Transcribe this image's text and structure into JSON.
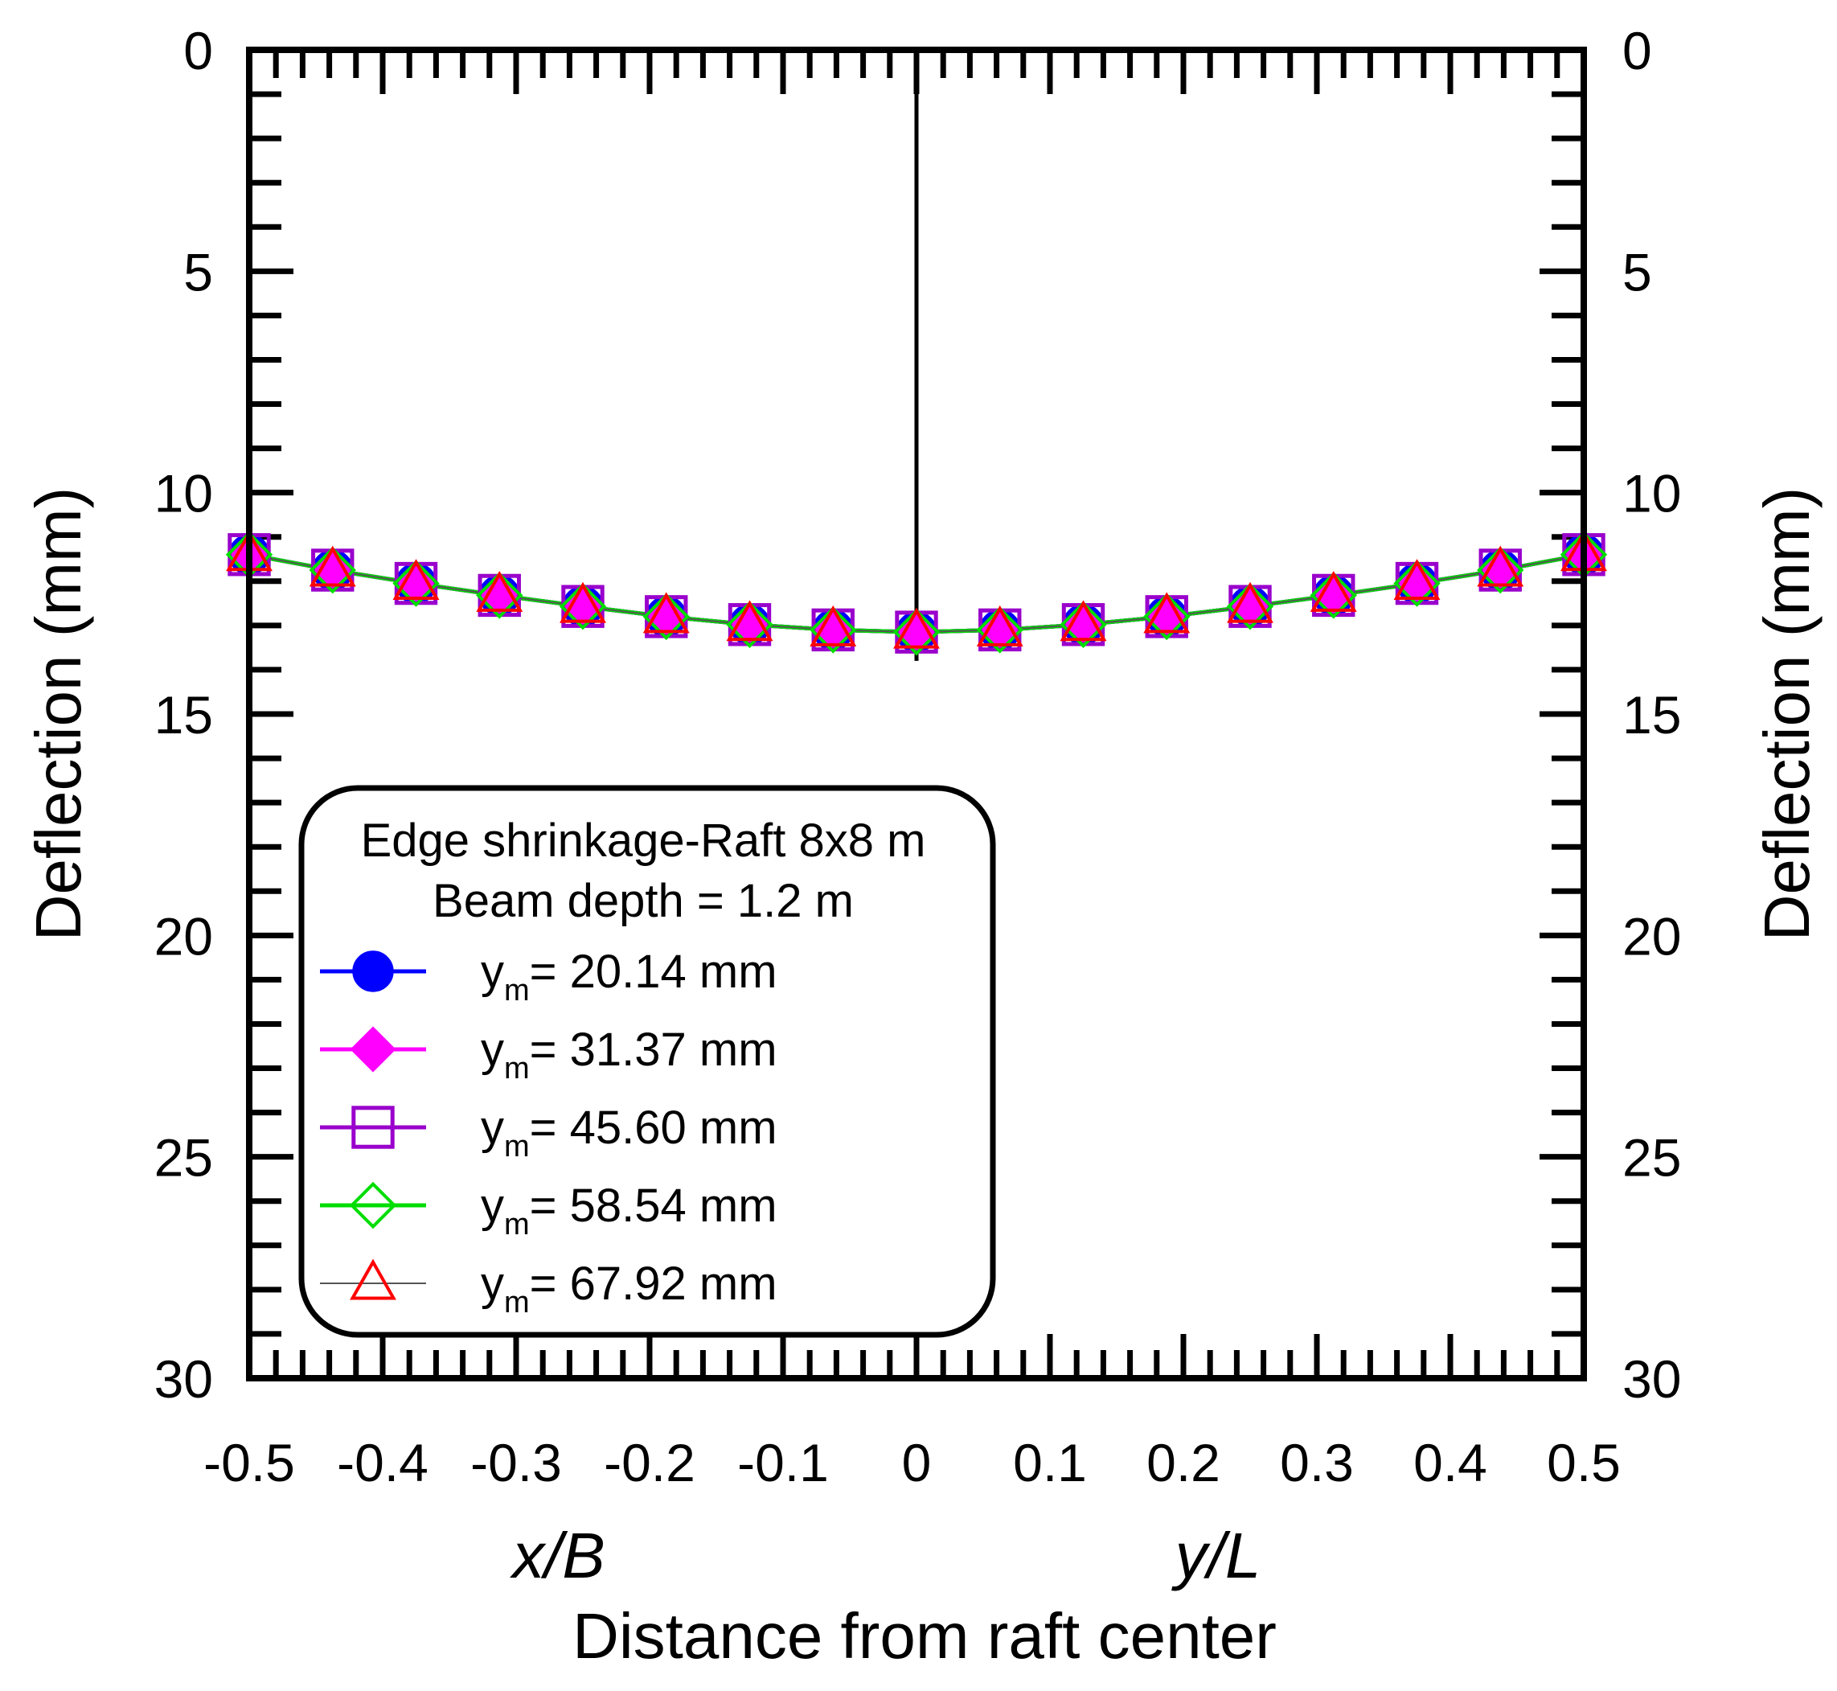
{
  "chart_data": {
    "type": "line",
    "x_label_left": "x/B",
    "x_label_right": "y/L",
    "xlabel": "Distance from raft center",
    "ylabel_left": "Deflection (mm)",
    "ylabel_right": "Deflection (mm)",
    "xlim": [
      -0.5,
      0.5
    ],
    "ylim": [
      0,
      30
    ],
    "y_inverted": true,
    "x_ticks": [
      "-0.5",
      "-0.4",
      "-0.3",
      "-0.2",
      "-0.1",
      "0",
      "0.1",
      "0.2",
      "0.3",
      "0.4",
      "0.5"
    ],
    "y_ticks": [
      "0",
      "5",
      "10",
      "15",
      "20",
      "25",
      "30"
    ],
    "center_line_x": 0,
    "legend": {
      "title_line1": "Edge shrinkage-Raft 8x8 m",
      "title_line2": "Beam depth = 1.2 m",
      "placement": "bottom-left",
      "entries": [
        {
          "prefix": "y",
          "sub": "m",
          "text": "= 20.14 mm"
        },
        {
          "prefix": "y",
          "sub": "m",
          "text": "= 31.37 mm"
        },
        {
          "prefix": "y",
          "sub": "m",
          "text": "= 45.60 mm"
        },
        {
          "prefix": "y",
          "sub": "m",
          "text": "= 58.54 mm"
        },
        {
          "prefix": "y",
          "sub": "m",
          "text": "= 67.92 mm"
        }
      ]
    },
    "x": [
      -0.5,
      -0.4375,
      -0.375,
      -0.3125,
      -0.25,
      -0.1875,
      -0.125,
      -0.0625,
      0,
      0.0625,
      0.125,
      0.1875,
      0.25,
      0.3125,
      0.375,
      0.4375,
      0.5
    ],
    "series": [
      {
        "name": "ym = 20.14 mm",
        "color": "#0000ff",
        "marker": "circle-filled",
        "line_width": 5,
        "values": [
          11.4,
          11.75,
          12.05,
          12.32,
          12.57,
          12.8,
          12.98,
          13.1,
          13.15,
          13.1,
          12.98,
          12.8,
          12.57,
          12.32,
          12.05,
          11.75,
          11.4
        ]
      },
      {
        "name": "ym = 31.37 mm",
        "color": "#ff00ff",
        "marker": "diamond-filled",
        "line_width": 5,
        "values": [
          11.4,
          11.75,
          12.05,
          12.32,
          12.57,
          12.8,
          12.98,
          13.1,
          13.15,
          13.1,
          12.98,
          12.8,
          12.57,
          12.32,
          12.05,
          11.75,
          11.4
        ]
      },
      {
        "name": "ym = 45.60 mm",
        "color": "#9900cc",
        "marker": "square-open",
        "line_width": 5,
        "values": [
          11.4,
          11.75,
          12.05,
          12.32,
          12.57,
          12.8,
          12.98,
          13.1,
          13.15,
          13.1,
          12.98,
          12.8,
          12.57,
          12.32,
          12.05,
          11.75,
          11.4
        ]
      },
      {
        "name": "ym = 58.54 mm",
        "color": "#00dd00",
        "marker": "diamond-open",
        "line_width": 5,
        "values": [
          11.4,
          11.75,
          12.05,
          12.32,
          12.57,
          12.8,
          12.98,
          13.1,
          13.15,
          13.1,
          12.98,
          12.8,
          12.57,
          12.32,
          12.05,
          11.75,
          11.4
        ]
      },
      {
        "name": "ym = 67.92 mm",
        "color": "#ff0000",
        "line_color": "#555555",
        "marker": "triangle-open",
        "line_width": 2,
        "values": [
          11.4,
          11.75,
          12.05,
          12.32,
          12.57,
          12.8,
          12.98,
          13.1,
          13.15,
          13.1,
          12.98,
          12.8,
          12.57,
          12.32,
          12.05,
          11.75,
          11.4
        ]
      }
    ]
  }
}
